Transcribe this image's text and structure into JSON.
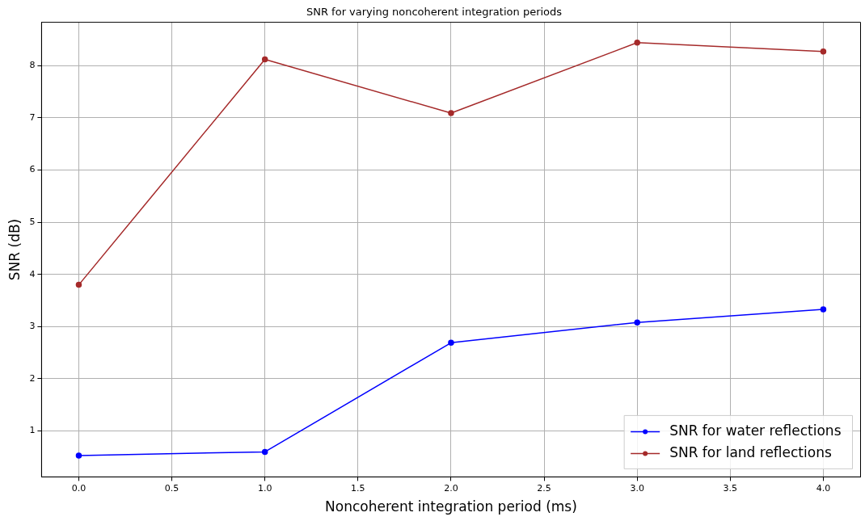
{
  "chart_data": {
    "type": "line",
    "title": "SNR for varying noncoherent integration periods",
    "xlabel": "Noncoherent integration period (ms)",
    "ylabel": "SNR (dB)",
    "x": [
      0,
      1,
      2,
      3,
      4
    ],
    "series": [
      {
        "name": "SNR for water reflections",
        "color": "#0000ff",
        "values": [
          0.53,
          0.6,
          2.69,
          3.08,
          3.33
        ]
      },
      {
        "name": "SNR for land reflections",
        "color": "#a52a2a",
        "values": [
          3.8,
          8.12,
          7.09,
          8.44,
          8.27
        ]
      }
    ],
    "xlim": [
      -0.2,
      4.2
    ],
    "xticks": [
      {
        "value": 0,
        "label": "0.0"
      },
      {
        "value": 0.5,
        "label": "0.5"
      },
      {
        "value": 1,
        "label": "1.0"
      },
      {
        "value": 1.5,
        "label": "1.5"
      },
      {
        "value": 2,
        "label": "2.0"
      },
      {
        "value": 2.5,
        "label": "2.5"
      },
      {
        "value": 3,
        "label": "3.0"
      },
      {
        "value": 3.5,
        "label": "3.5"
      },
      {
        "value": 4,
        "label": "4.0"
      }
    ],
    "ylim": [
      0.12,
      8.83
    ],
    "yticks": [
      1,
      2,
      3,
      4,
      5,
      6,
      7,
      8
    ],
    "grid": true,
    "legend": "bottom right",
    "marker": "circle",
    "line_style": "solid"
  }
}
